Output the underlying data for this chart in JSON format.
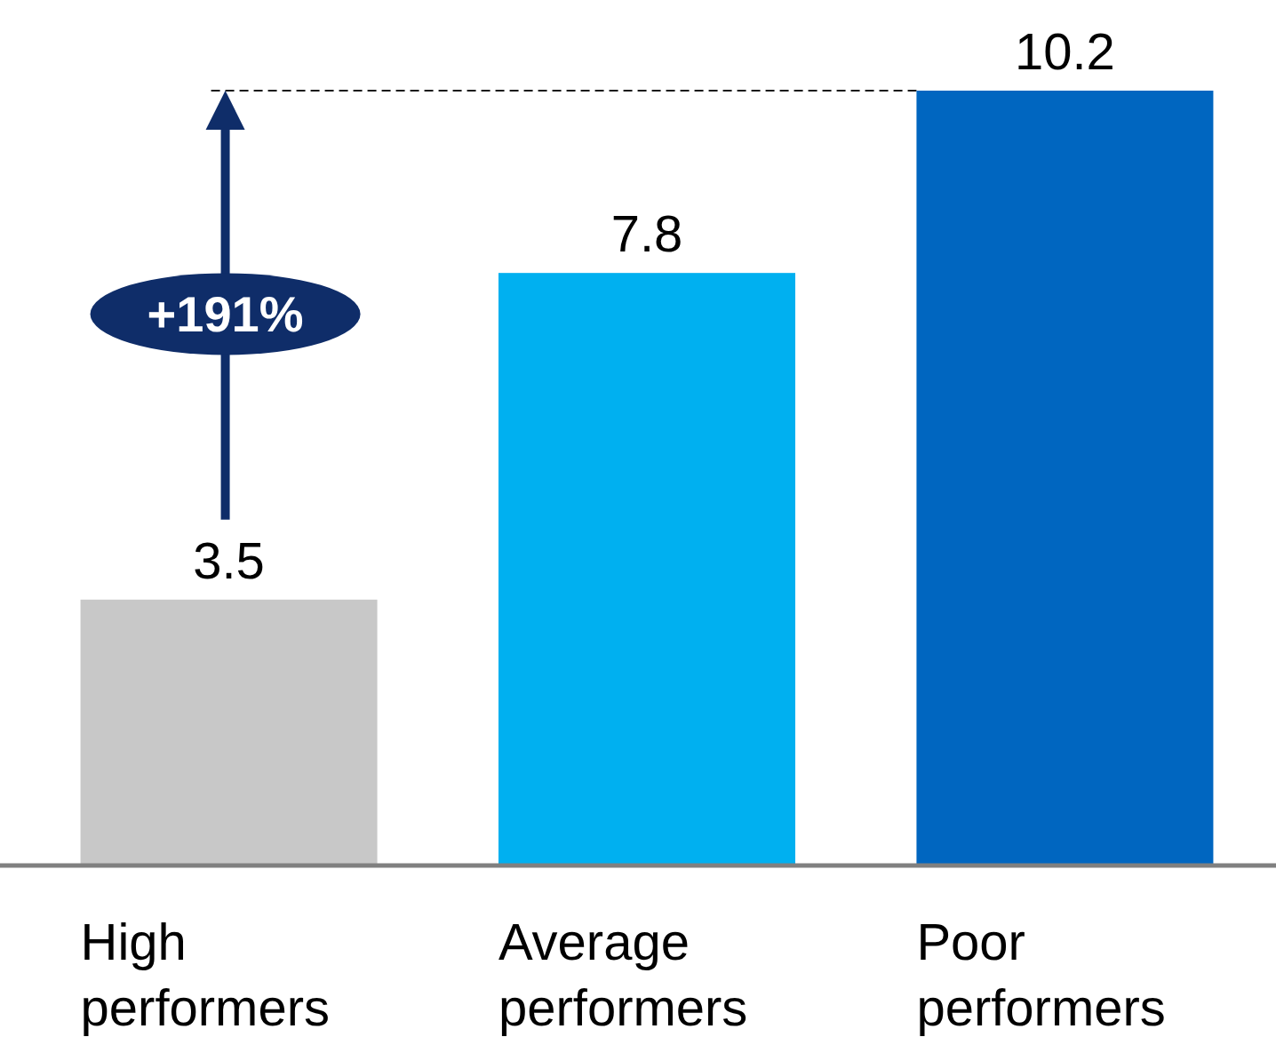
{
  "chart_data": {
    "type": "bar",
    "categories": [
      "High performers",
      "Average performers",
      "Poor performers"
    ],
    "values": [
      3.5,
      7.8,
      10.2
    ],
    "colors": [
      "#c8c8c8",
      "#00b0f0",
      "#0066c0"
    ],
    "data_labels": true,
    "annotations": [
      "+191%"
    ],
    "ref_lines": [
      {
        "axis": "y",
        "value": 10.2,
        "color": "#1a1a1a",
        "line_style": "dashed"
      }
    ]
  }
}
